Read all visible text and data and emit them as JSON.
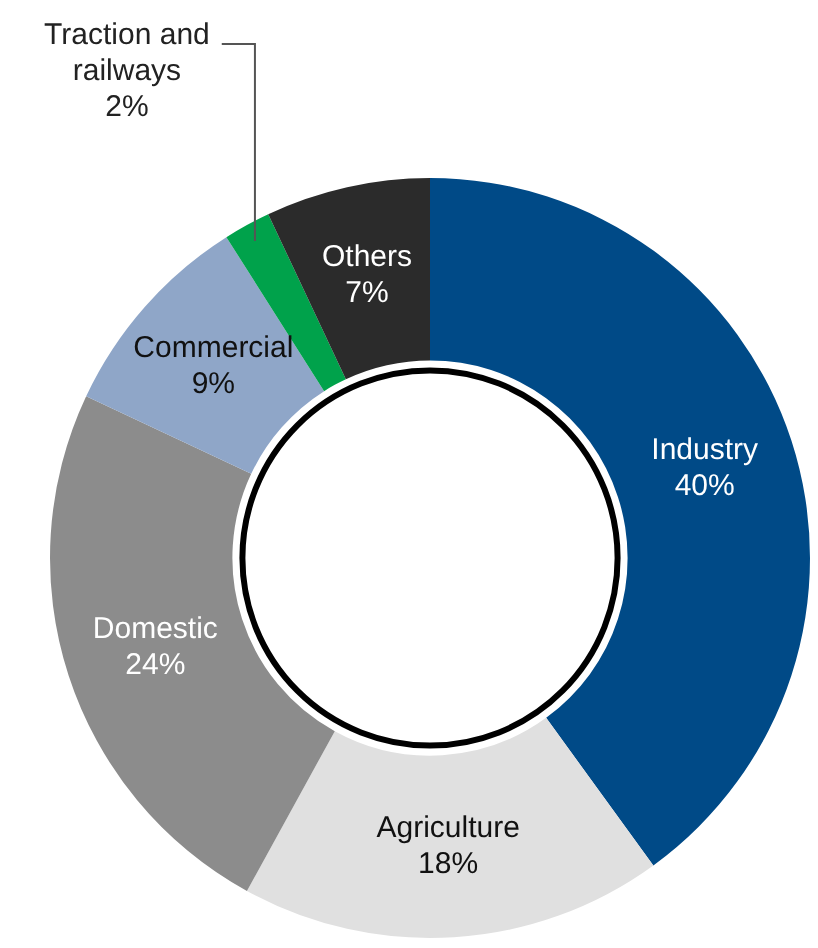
{
  "chart_data": {
    "type": "donut",
    "categories": [
      "Industry",
      "Agriculture",
      "Domestic",
      "Commercial",
      "Traction and railways",
      "Others"
    ],
    "values": [
      40,
      18,
      24,
      9,
      2,
      7
    ],
    "value_labels": [
      "40%",
      "18%",
      "24%",
      "9%",
      "2%",
      "7%"
    ],
    "colors": [
      "#004a87",
      "#e0e0e0",
      "#8c8c8c",
      "#8fa6c8",
      "#00a24b",
      "#2b2b2b"
    ],
    "legend": false
  }
}
